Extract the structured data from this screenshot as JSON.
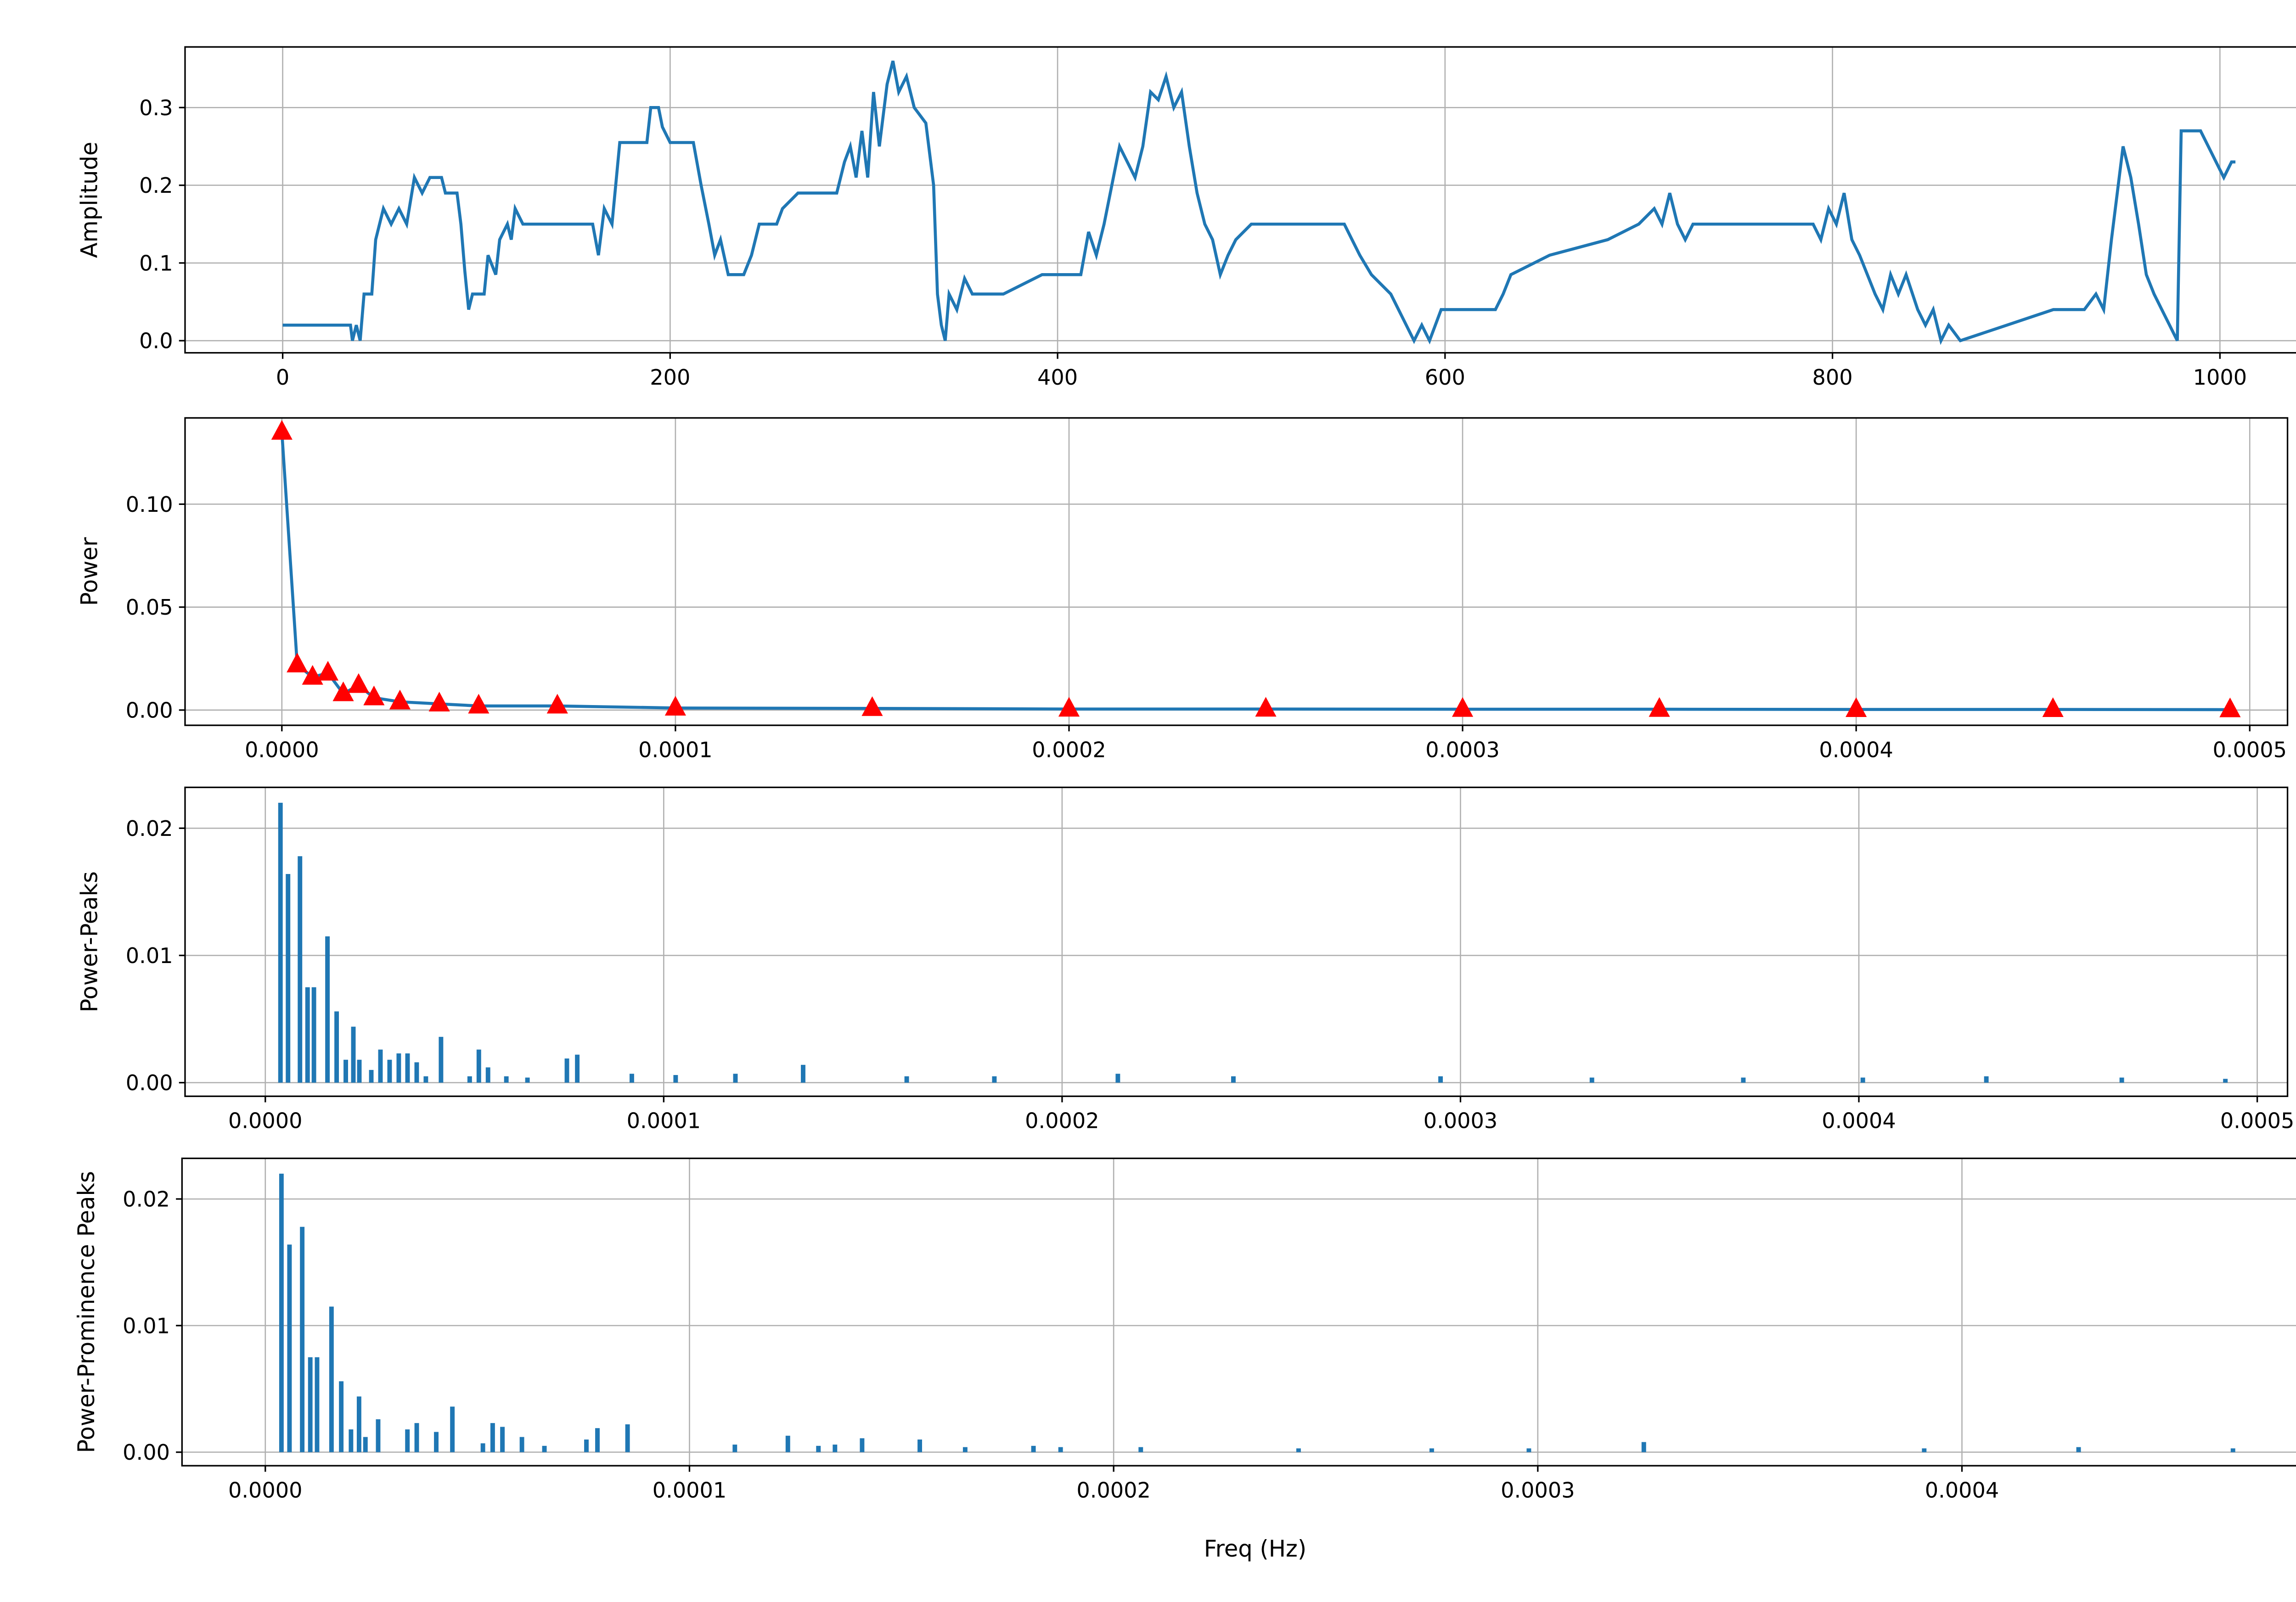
{
  "chart_data": [
    {
      "type": "line",
      "ylabel": "Amplitude",
      "xlim": [
        -50.4,
        1056
      ],
      "ylim": [
        -0.0156,
        0.378
      ],
      "grid": true,
      "xticks": [
        0,
        200,
        400,
        600,
        800,
        1000
      ],
      "yticks": [
        {
          "value": 0,
          "label": "0.0"
        },
        {
          "value": 0.1,
          "label": "0.1"
        },
        {
          "value": 0.2,
          "label": "0.2"
        },
        {
          "value": 0.3,
          "label": "0.3"
        }
      ],
      "x": [
        0,
        35,
        36,
        38,
        40,
        42,
        46,
        48,
        52,
        56,
        60,
        64,
        68,
        72,
        76,
        82,
        84,
        90,
        92,
        94,
        96,
        98,
        104,
        106,
        110,
        112,
        116,
        118,
        120,
        124,
        160,
        163,
        166,
        170,
        174,
        188,
        190,
        194,
        196,
        200,
        212,
        216,
        220,
        223,
        226,
        230,
        238,
        242,
        246,
        255,
        258,
        266,
        286,
        290,
        293,
        296,
        299,
        302,
        305,
        308,
        312,
        315,
        318,
        322,
        326,
        332,
        336,
        338,
        340,
        342,
        344,
        348,
        352,
        356,
        372,
        392,
        412,
        416,
        420,
        424,
        428,
        432,
        436,
        440,
        444,
        448,
        452,
        456,
        460,
        464,
        468,
        472,
        476,
        480,
        484,
        488,
        492,
        500,
        548,
        552,
        556,
        562,
        572,
        576,
        580,
        584,
        588,
        592,
        598,
        626,
        630,
        634,
        654,
        684,
        700,
        708,
        712,
        716,
        720,
        724,
        728,
        760,
        790,
        794,
        798,
        802,
        806,
        810,
        814,
        818,
        822,
        826,
        830,
        834,
        838,
        844,
        848,
        852,
        856,
        860,
        866,
        890,
        914,
        930,
        936,
        940,
        944,
        948,
        950,
        954,
        958,
        962,
        966,
        970,
        974,
        978,
        980,
        990,
        994,
        998,
        1002,
        1006,
        1008
      ],
      "series": [
        {
          "color": "#1f77b4",
          "values": [
            0.02,
            0.02,
            0,
            0.02,
            0,
            0.06,
            0.06,
            0.13,
            0.17,
            0.15,
            0.17,
            0.15,
            0.21,
            0.19,
            0.21,
            0.21,
            0.19,
            0.19,
            0.15,
            0.09,
            0.04,
            0.06,
            0.06,
            0.11,
            0.085,
            0.13,
            0.15,
            0.13,
            0.17,
            0.15,
            0.15,
            0.11,
            0.17,
            0.15,
            0.255,
            0.255,
            0.3,
            0.3,
            0.275,
            0.255,
            0.255,
            0.2,
            0.15,
            0.11,
            0.13,
            0.085,
            0.085,
            0.11,
            0.15,
            0.15,
            0.17,
            0.19,
            0.19,
            0.23,
            0.25,
            0.21,
            0.27,
            0.21,
            0.32,
            0.25,
            0.33,
            0.36,
            0.32,
            0.34,
            0.3,
            0.28,
            0.2,
            0.06,
            0.02,
            0,
            0.06,
            0.04,
            0.08,
            0.06,
            0.06,
            0.085,
            0.085,
            0.14,
            0.11,
            0.15,
            0.2,
            0.25,
            0.23,
            0.21,
            0.25,
            0.32,
            0.31,
            0.34,
            0.3,
            0.32,
            0.25,
            0.19,
            0.15,
            0.13,
            0.085,
            0.11,
            0.13,
            0.15,
            0.15,
            0.13,
            0.11,
            0.085,
            0.06,
            0.04,
            0.02,
            0,
            0.02,
            0,
            0.04,
            0.04,
            0.06,
            0.085,
            0.11,
            0.13,
            0.15,
            0.17,
            0.15,
            0.19,
            0.15,
            0.13,
            0.15,
            0.15,
            0.15,
            0.13,
            0.17,
            0.15,
            0.19,
            0.13,
            0.11,
            0.085,
            0.06,
            0.04,
            0.085,
            0.06,
            0.085,
            0.04,
            0.02,
            0.04,
            0,
            0.02,
            0,
            0.02,
            0.04,
            0.04,
            0.06,
            0.04,
            0.13,
            0.21,
            0.25,
            0.21,
            0.15,
            0.085,
            0.06,
            0.04,
            0.02,
            0,
            0.27,
            0.27,
            0.25,
            0.23,
            0.21,
            0.23,
            0.23
          ]
        }
      ]
    },
    {
      "type": "line",
      "ylabel": "Power",
      "xlim": [
        -2.46e-05,
        0.0005096
      ],
      "ylim": [
        -0.0074,
        0.1419
      ],
      "grid": true,
      "xticks": [
        {
          "value": 0,
          "label": "0.0000"
        },
        {
          "value": 0.0001,
          "label": "0.0001"
        },
        {
          "value": 0.0002,
          "label": "0.0002"
        },
        {
          "value": 0.0003,
          "label": "0.0003"
        },
        {
          "value": 0.0004,
          "label": "0.0004"
        },
        {
          "value": 0.0005,
          "label": "0.0005"
        }
      ],
      "yticks": [
        {
          "value": 0,
          "label": "0.00"
        },
        {
          "value": 0.05,
          "label": "0.05"
        },
        {
          "value": 0.1,
          "label": "0.10"
        }
      ],
      "x": [
        0,
        3.9e-06,
        7.8e-06,
        1.17e-05,
        1.56e-05,
        1.95e-05,
        2.34e-05,
        3e-05,
        4e-05,
        5e-05,
        7e-05,
        0.0001,
        0.00015,
        0.0002,
        0.00025,
        0.0003,
        0.00035,
        0.0004,
        0.00045,
        0.000495
      ],
      "series": [
        {
          "color": "#1f77b4",
          "marker": "triangle",
          "marker_color": "red",
          "values": [
            0.135,
            0.022,
            0.016,
            0.018,
            0.008,
            0.012,
            0.006,
            0.004,
            0.003,
            0.002,
            0.002,
            0.001,
            0.0008,
            0.0005,
            0.0005,
            0.0004,
            0.0004,
            0.0003,
            0.0003,
            0.0002
          ]
        }
      ]
    },
    {
      "type": "bar",
      "ylabel": "Power-Peaks",
      "xlim": [
        -2.015e-05,
        0.0005076
      ],
      "ylim": [
        -0.00107,
        0.02321
      ],
      "grid": true,
      "color": "#1f77b4",
      "xticks": [
        {
          "value": 0,
          "label": "0.0000"
        },
        {
          "value": 0.0001,
          "label": "0.0001"
        },
        {
          "value": 0.0002,
          "label": "0.0002"
        },
        {
          "value": 0.0003,
          "label": "0.0003"
        },
        {
          "value": 0.0004,
          "label": "0.0004"
        },
        {
          "value": 0.0005,
          "label": "0.0005"
        }
      ],
      "yticks": [
        {
          "value": 0,
          "label": "0.00"
        },
        {
          "value": 0.01,
          "label": "0.01"
        },
        {
          "value": 0.02,
          "label": "0.02"
        }
      ],
      "x": [
        3.8e-06,
        5.7e-06,
        8.7e-06,
        1.06e-05,
        1.22e-05,
        1.56e-05,
        1.79e-05,
        2.02e-05,
        2.21e-05,
        2.36e-05,
        2.66e-05,
        2.89e-05,
        3.12e-05,
        3.35e-05,
        3.57e-05,
        3.8e-05,
        4.03e-05,
        4.41e-05,
        5.13e-05,
        5.36e-05,
        5.59e-05,
        6.05e-05,
        6.58e-05,
        7.57e-05,
        7.83e-05,
        9.2e-05,
        0.000103,
        0.000118,
        0.000135,
        0.000161,
        0.000183,
        0.000214,
        0.000243,
        0.000295,
        0.000333,
        0.000371,
        0.000401,
        0.000432,
        0.000466,
        0.000492
      ],
      "values": [
        0.022,
        0.0164,
        0.0178,
        0.0075,
        0.0075,
        0.0115,
        0.0056,
        0.0018,
        0.0044,
        0.0018,
        0.001,
        0.0026,
        0.0018,
        0.0023,
        0.0023,
        0.0016,
        0.0005,
        0.0036,
        0.0005,
        0.0026,
        0.0012,
        0.0005,
        0.0004,
        0.0019,
        0.0022,
        0.0007,
        0.0006,
        0.0007,
        0.0014,
        0.0005,
        0.0005,
        0.0007,
        0.0005,
        0.0005,
        0.0004,
        0.0004,
        0.0004,
        0.0005,
        0.0004,
        0.0003
      ]
    },
    {
      "type": "bar",
      "ylabel": "Power-Prominence Peaks",
      "xlabel": "Freq (Hz)",
      "xlim": [
        -1.964e-05,
        0.0004864
      ],
      "ylim": [
        -0.00107,
        0.02321
      ],
      "grid": true,
      "color": "#1f77b4",
      "xticks": [
        {
          "value": 0,
          "label": "0.0000"
        },
        {
          "value": 0.0001,
          "label": "0.0001"
        },
        {
          "value": 0.0002,
          "label": "0.0002"
        },
        {
          "value": 0.0003,
          "label": "0.0003"
        },
        {
          "value": 0.0004,
          "label": "0.0004"
        }
      ],
      "yticks": [
        {
          "value": 0,
          "label": "0.00"
        },
        {
          "value": 0.01,
          "label": "0.01"
        },
        {
          "value": 0.02,
          "label": "0.02"
        }
      ],
      "x": [
        3.8e-06,
        5.7e-06,
        8.7e-06,
        1.06e-05,
        1.22e-05,
        1.56e-05,
        1.79e-05,
        2.02e-05,
        2.21e-05,
        2.36e-05,
        2.66e-05,
        3.35e-05,
        3.57e-05,
        4.03e-05,
        4.41e-05,
        5.13e-05,
        5.36e-05,
        5.59e-05,
        6.05e-05,
        6.58e-05,
        7.57e-05,
        7.83e-05,
        8.54e-05,
        0.0001107,
        0.0001232,
        0.0001304,
        0.0001343,
        0.0001407,
        0.0001543,
        0.000165,
        0.0001811,
        0.0001875,
        0.0002064,
        0.0002436,
        0.000275,
        0.0002979,
        0.000325,
        0.0003911,
        0.0004275,
        0.0004639
      ],
      "values": [
        0.022,
        0.0164,
        0.0178,
        0.0075,
        0.0075,
        0.0115,
        0.0056,
        0.0018,
        0.0044,
        0.0012,
        0.0026,
        0.0018,
        0.0023,
        0.0016,
        0.0036,
        0.0007,
        0.0023,
        0.002,
        0.0012,
        0.0005,
        0.001,
        0.0019,
        0.0022,
        0.0006,
        0.0013,
        0.0005,
        0.0006,
        0.0011,
        0.001,
        0.0004,
        0.0005,
        0.0004,
        0.0004,
        0.0003,
        0.0003,
        0.0003,
        0.0008,
        0.0003,
        0.0004,
        0.0003
      ]
    }
  ]
}
